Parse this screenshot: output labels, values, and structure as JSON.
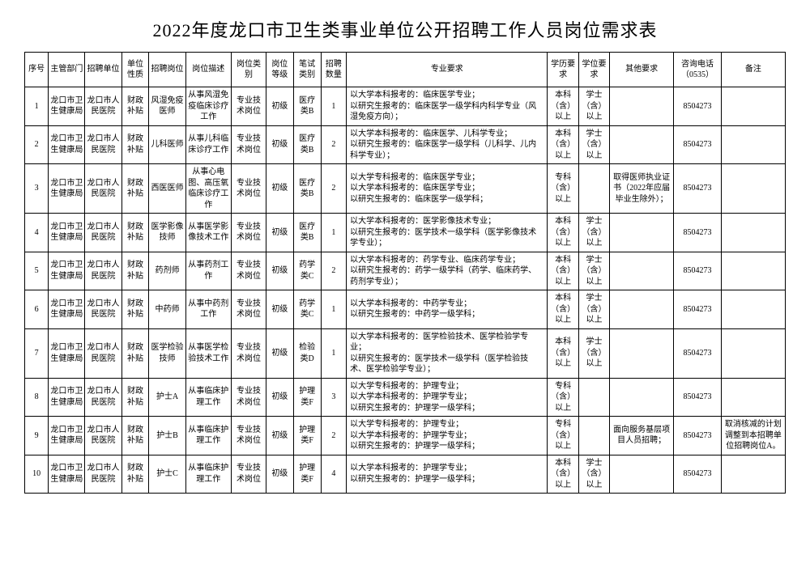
{
  "title": "2022年度龙口市卫生类事业单位公开招聘工作人员岗位需求表",
  "headers": {
    "idx": "序号",
    "dept": "主管部门",
    "unit": "招聘单位",
    "nature": "单位性质",
    "position": "招聘岗位",
    "desc": "岗位描述",
    "category": "岗位类别",
    "level": "岗位等级",
    "exam": "笔试类别",
    "count": "招聘数量",
    "requirement": "专业要求",
    "edu": "学历要求",
    "degree": "学位要求",
    "other": "其他要求",
    "tel": "咨询电话（0535）",
    "note": "备注"
  },
  "rows": [
    {
      "idx": "1",
      "dept": "龙口市卫生健康局",
      "unit": "龙口市人民医院",
      "nature": "财政补贴",
      "position": "风湿免疫医师",
      "desc": "从事风湿免疫临床诊疗工作",
      "category": "专业技术岗位",
      "level": "初级",
      "exam": "医疗类B",
      "count": "1",
      "requirement": "以大学本科报考的：临床医学专业；\n以研究生报考的：临床医学一级学科内科学专业（风湿免疫方向）；",
      "edu": "本科（含）以上",
      "degree": "学士（含）以上",
      "other": "",
      "tel": "8504273",
      "note": ""
    },
    {
      "idx": "2",
      "dept": "龙口市卫生健康局",
      "unit": "龙口市人民医院",
      "nature": "财政补贴",
      "position": "儿科医师",
      "desc": "从事儿科临床诊疗工作",
      "category": "专业技术岗位",
      "level": "初级",
      "exam": "医疗类B",
      "count": "2",
      "requirement": "以大学本科报考的：临床医学、儿科学专业；\n以研究生报考的：临床医学一级学科（儿科学、儿内科学专业）；",
      "edu": "本科（含）以上",
      "degree": "学士（含）以上",
      "other": "",
      "tel": "8504273",
      "note": ""
    },
    {
      "idx": "3",
      "dept": "龙口市卫生健康局",
      "unit": "龙口市人民医院",
      "nature": "财政补贴",
      "position": "西医医师",
      "desc": "从事心电图、高压氧临床诊疗工作",
      "category": "专业技术岗位",
      "level": "初级",
      "exam": "医疗类B",
      "count": "2",
      "requirement": "以大学专科报考的：临床医学专业；\n以大学本科报考的：临床医学专业；\n以研究生报考的：临床医学一级学科；",
      "edu": "专科（含）以上",
      "degree": "",
      "other": "取得医师执业证书（2022年应届毕业生除外）；",
      "tel": "8504273",
      "note": ""
    },
    {
      "idx": "4",
      "dept": "龙口市卫生健康局",
      "unit": "龙口市人民医院",
      "nature": "财政补贴",
      "position": "医学影像技师",
      "desc": "从事医学影像技术工作",
      "category": "专业技术岗位",
      "level": "初级",
      "exam": "医疗类B",
      "count": "1",
      "requirement": "以大学本科报考的：医学影像技术专业；\n以研究生报考的：医学技术一级学科（医学影像技术学专业）；",
      "edu": "本科（含）以上",
      "degree": "学士（含）以上",
      "other": "",
      "tel": "8504273",
      "note": ""
    },
    {
      "idx": "5",
      "dept": "龙口市卫生健康局",
      "unit": "龙口市人民医院",
      "nature": "财政补贴",
      "position": "药剂师",
      "desc": "从事药剂工作",
      "category": "专业技术岗位",
      "level": "初级",
      "exam": "药学类C",
      "count": "2",
      "requirement": "以大学本科报考的：药学专业、临床药学专业；\n以研究生报考的：药学一级学科（药学、临床药学、药剂学专业）；",
      "edu": "本科（含）以上",
      "degree": "学士（含）以上",
      "other": "",
      "tel": "8504273",
      "note": ""
    },
    {
      "idx": "6",
      "dept": "龙口市卫生健康局",
      "unit": "龙口市人民医院",
      "nature": "财政补贴",
      "position": "中药师",
      "desc": "从事中药剂工作",
      "category": "专业技术岗位",
      "level": "初级",
      "exam": "药学类C",
      "count": "1",
      "requirement": "以大学本科报考的：中药学专业；\n以研究生报考的：中药学一级学科；",
      "edu": "本科（含）以上",
      "degree": "学士（含）以上",
      "other": "",
      "tel": "8504273",
      "note": ""
    },
    {
      "idx": "7",
      "dept": "龙口市卫生健康局",
      "unit": "龙口市人民医院",
      "nature": "财政补贴",
      "position": "医学检验技师",
      "desc": "从事医学检验技术工作",
      "category": "专业技术岗位",
      "level": "初级",
      "exam": "检验类D",
      "count": "1",
      "requirement": "以大学本科报考的：医学检验技术、医学检验学专业；\n以研究生报考的：医学技术一级学科（医学检验技术、医学检验学专业）；",
      "edu": "本科（含）以上",
      "degree": "学士（含）以上",
      "other": "",
      "tel": "8504273",
      "note": ""
    },
    {
      "idx": "8",
      "dept": "龙口市卫生健康局",
      "unit": "龙口市人民医院",
      "nature": "财政补贴",
      "position": "护士A",
      "desc": "从事临床护理工作",
      "category": "专业技术岗位",
      "level": "初级",
      "exam": "护理类F",
      "count": "3",
      "requirement": "以大学专科报考的：护理专业；\n以大学本科报考的：护理学专业；\n以研究生报考的：护理学一级学科；",
      "edu": "专科（含）以上",
      "degree": "",
      "other": "",
      "tel": "8504273",
      "note": ""
    },
    {
      "idx": "9",
      "dept": "龙口市卫生健康局",
      "unit": "龙口市人民医院",
      "nature": "财政补贴",
      "position": "护士B",
      "desc": "从事临床护理工作",
      "category": "专业技术岗位",
      "level": "初级",
      "exam": "护理类F",
      "count": "2",
      "requirement": "以大学专科报考的：护理专业；\n以大学本科报考的：护理学专业；\n以研究生报考的：护理学一级学科；",
      "edu": "专科（含）以上",
      "degree": "",
      "other": "面向服务基层项目人员招聘；",
      "tel": "8504273",
      "note": "取消核减的计划调整到本招聘单位招聘岗位A。"
    },
    {
      "idx": "10",
      "dept": "龙口市卫生健康局",
      "unit": "龙口市人民医院",
      "nature": "财政补贴",
      "position": "护士C",
      "desc": "从事临床护理工作",
      "category": "专业技术岗位",
      "level": "初级",
      "exam": "护理类F",
      "count": "4",
      "requirement": "以大学本科报考的：护理学专业；\n以研究生报考的：护理学一级学科；",
      "edu": "本科（含）以上",
      "degree": "学士（含）以上",
      "other": "",
      "tel": "8504273",
      "note": ""
    }
  ]
}
